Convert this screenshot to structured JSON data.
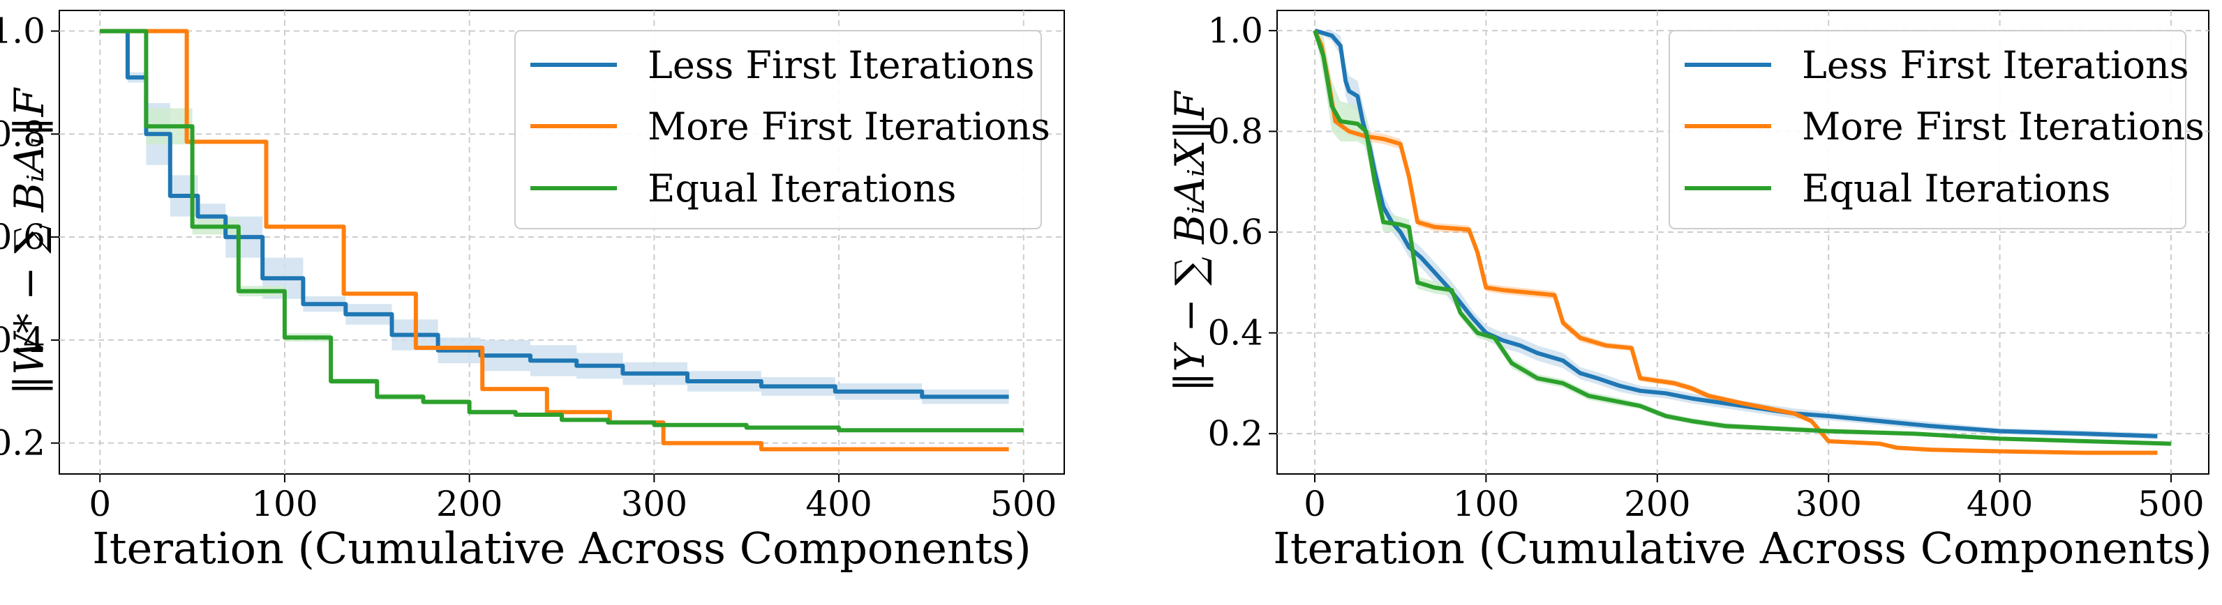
{
  "chart_data": [
    {
      "type": "line",
      "xlabel": "Iteration (Cumulative Across Components)",
      "ylabel": "‖W* − ∑ BᵢAᵢ‖F",
      "xlim": [
        -22,
        522
      ],
      "ylim": [
        0.14,
        1.04
      ],
      "xticks": [
        0,
        100,
        200,
        300,
        400,
        500
      ],
      "yticks": [
        0.2,
        0.4,
        0.6,
        0.8,
        1.0
      ],
      "xtick_labels": [
        "0",
        "100",
        "200",
        "300",
        "400",
        "500"
      ],
      "ytick_labels": [
        "0.2",
        "0.4",
        "0.6",
        "0.8",
        "1.0"
      ],
      "grid": true,
      "legend_position": "upper-right",
      "series": [
        {
          "name": "Less First Iterations",
          "color": "#1f77b4",
          "band_color": "#cfe0ef",
          "x": [
            0,
            15,
            15,
            25,
            25,
            38,
            38,
            53,
            53,
            68,
            68,
            88,
            88,
            110,
            110,
            133,
            133,
            158,
            158,
            183,
            183,
            206,
            206,
            233,
            233,
            258,
            258,
            283,
            283,
            318,
            318,
            358,
            358,
            398,
            398,
            445,
            445,
            492
          ],
          "y": [
            1.0,
            1.0,
            0.91,
            0.91,
            0.8,
            0.8,
            0.68,
            0.68,
            0.64,
            0.64,
            0.6,
            0.6,
            0.52,
            0.52,
            0.47,
            0.47,
            0.45,
            0.45,
            0.41,
            0.41,
            0.38,
            0.38,
            0.37,
            0.37,
            0.36,
            0.36,
            0.35,
            0.35,
            0.335,
            0.335,
            0.32,
            0.32,
            0.31,
            0.31,
            0.3,
            0.3,
            0.29,
            0.29
          ],
          "band_half_width": [
            0.0,
            0.0,
            0.01,
            0.01,
            0.06,
            0.06,
            0.04,
            0.04,
            0.025,
            0.025,
            0.04,
            0.04,
            0.04,
            0.04,
            0.015,
            0.015,
            0.02,
            0.02,
            0.03,
            0.03,
            0.025,
            0.025,
            0.03,
            0.03,
            0.03,
            0.03,
            0.025,
            0.025,
            0.022,
            0.022,
            0.02,
            0.02,
            0.018,
            0.018,
            0.016,
            0.016,
            0.014,
            0.014
          ]
        },
        {
          "name": "More First Iterations",
          "color": "#ff7f0e",
          "x": [
            0,
            47,
            47,
            90,
            90,
            132,
            132,
            171,
            171,
            207,
            207,
            242,
            242,
            276,
            276,
            305,
            305,
            358,
            358,
            492
          ],
          "y": [
            1.0,
            1.0,
            0.785,
            0.785,
            0.62,
            0.62,
            0.49,
            0.49,
            0.385,
            0.385,
            0.305,
            0.305,
            0.26,
            0.26,
            0.24,
            0.24,
            0.2,
            0.2,
            0.188,
            0.188
          ]
        },
        {
          "name": "Equal Iterations",
          "color": "#2ca02c",
          "band_color": "#cfeccf",
          "x": [
            0,
            25,
            25,
            50,
            50,
            75,
            75,
            100,
            100,
            125,
            125,
            150,
            150,
            175,
            175,
            200,
            200,
            225,
            225,
            250,
            250,
            275,
            275,
            300,
            300,
            350,
            350,
            400,
            400,
            500
          ],
          "y": [
            1.0,
            1.0,
            0.815,
            0.815,
            0.62,
            0.62,
            0.495,
            0.495,
            0.405,
            0.405,
            0.32,
            0.32,
            0.29,
            0.29,
            0.28,
            0.28,
            0.26,
            0.26,
            0.255,
            0.255,
            0.245,
            0.245,
            0.24,
            0.24,
            0.235,
            0.235,
            0.23,
            0.23,
            0.225,
            0.225
          ],
          "band_half_width": [
            0.0,
            0.0,
            0.035,
            0.035,
            0.015,
            0.015,
            0.01,
            0.01,
            0.008,
            0.008,
            0.006,
            0.006,
            0.006,
            0.006,
            0.005,
            0.005,
            0.005,
            0.005,
            0.004,
            0.004,
            0.004,
            0.004,
            0.003,
            0.003,
            0.003,
            0.003,
            0.003,
            0.003,
            0.003,
            0.003
          ]
        }
      ]
    },
    {
      "type": "line",
      "xlabel": "Iteration (Cumulative Across Components)",
      "ylabel": "‖Y − ∑ BᵢAᵢX‖F",
      "xlim": [
        -22,
        522
      ],
      "ylim": [
        0.12,
        1.04
      ],
      "xticks": [
        0,
        100,
        200,
        300,
        400,
        500
      ],
      "yticks": [
        0.2,
        0.4,
        0.6,
        0.8,
        1.0
      ],
      "xtick_labels": [
        "0",
        "100",
        "200",
        "300",
        "400",
        "500"
      ],
      "ytick_labels": [
        "0.2",
        "0.4",
        "0.6",
        "0.8",
        "1.0"
      ],
      "grid": true,
      "legend_position": "upper-right",
      "series": [
        {
          "name": "Less First Iterations",
          "color": "#1f77b4",
          "band_color": "#cfe0ef",
          "x": [
            0,
            10,
            15,
            18,
            20,
            25,
            28,
            32,
            35,
            40,
            45,
            50,
            55,
            62,
            70,
            78,
            85,
            92,
            100,
            110,
            120,
            130,
            145,
            155,
            165,
            178,
            190,
            205,
            220,
            240,
            260,
            280,
            300,
            330,
            360,
            400,
            450,
            492
          ],
          "y": [
            1.0,
            0.99,
            0.97,
            0.9,
            0.88,
            0.87,
            0.82,
            0.77,
            0.72,
            0.65,
            0.62,
            0.6,
            0.57,
            0.55,
            0.52,
            0.49,
            0.46,
            0.43,
            0.4,
            0.385,
            0.375,
            0.36,
            0.345,
            0.32,
            0.31,
            0.295,
            0.285,
            0.28,
            0.27,
            0.26,
            0.25,
            0.24,
            0.235,
            0.225,
            0.215,
            0.205,
            0.2,
            0.195
          ],
          "band_half_width": [
            0.0,
            0.01,
            0.02,
            0.03,
            0.03,
            0.03,
            0.035,
            0.035,
            0.03,
            0.025,
            0.02,
            0.02,
            0.02,
            0.02,
            0.02,
            0.02,
            0.02,
            0.015,
            0.015,
            0.015,
            0.015,
            0.015,
            0.015,
            0.012,
            0.012,
            0.012,
            0.01,
            0.01,
            0.01,
            0.01,
            0.01,
            0.01,
            0.008,
            0.008,
            0.008,
            0.006,
            0.006,
            0.006
          ]
        },
        {
          "name": "More First Iterations",
          "color": "#ff7f0e",
          "x": [
            0,
            4,
            8,
            12,
            20,
            30,
            40,
            50,
            55,
            60,
            70,
            90,
            95,
            100,
            110,
            140,
            145,
            155,
            170,
            185,
            190,
            210,
            220,
            230,
            250,
            265,
            280,
            290,
            300,
            330,
            340,
            360,
            400,
            450,
            492
          ],
          "y": [
            1.0,
            0.97,
            0.9,
            0.82,
            0.8,
            0.79,
            0.785,
            0.775,
            0.71,
            0.62,
            0.61,
            0.605,
            0.56,
            0.49,
            0.485,
            0.475,
            0.42,
            0.39,
            0.375,
            0.37,
            0.31,
            0.3,
            0.29,
            0.275,
            0.26,
            0.25,
            0.24,
            0.225,
            0.185,
            0.18,
            0.172,
            0.168,
            0.165,
            0.162,
            0.162
          ],
          "band_half_width": [
            0.0,
            0.01,
            0.01,
            0.01,
            0.01,
            0.01,
            0.01,
            0.01,
            0.01,
            0.008,
            0.008,
            0.008,
            0.008,
            0.008,
            0.008,
            0.008,
            0.008,
            0.008,
            0.006,
            0.006,
            0.006,
            0.006,
            0.006,
            0.006,
            0.005,
            0.005,
            0.005,
            0.005,
            0.004,
            0.004,
            0.004,
            0.004,
            0.004,
            0.004,
            0.004
          ]
        },
        {
          "name": "Equal Iterations",
          "color": "#2ca02c",
          "band_color": "#cfeccf",
          "x": [
            0,
            5,
            10,
            15,
            25,
            30,
            35,
            40,
            50,
            55,
            60,
            70,
            80,
            85,
            95,
            105,
            115,
            130,
            145,
            160,
            175,
            190,
            205,
            220,
            240,
            270,
            300,
            350,
            400,
            450,
            500
          ],
          "y": [
            1.0,
            0.95,
            0.85,
            0.82,
            0.815,
            0.8,
            0.7,
            0.62,
            0.615,
            0.61,
            0.5,
            0.49,
            0.485,
            0.44,
            0.4,
            0.39,
            0.34,
            0.31,
            0.3,
            0.275,
            0.265,
            0.255,
            0.235,
            0.225,
            0.215,
            0.21,
            0.205,
            0.2,
            0.19,
            0.185,
            0.18
          ],
          "band_half_width": [
            0.0,
            0.04,
            0.05,
            0.04,
            0.035,
            0.03,
            0.025,
            0.02,
            0.015,
            0.015,
            0.012,
            0.012,
            0.012,
            0.01,
            0.01,
            0.01,
            0.01,
            0.008,
            0.008,
            0.008,
            0.008,
            0.006,
            0.006,
            0.006,
            0.006,
            0.005,
            0.005,
            0.004,
            0.004,
            0.004,
            0.004
          ]
        }
      ]
    }
  ]
}
